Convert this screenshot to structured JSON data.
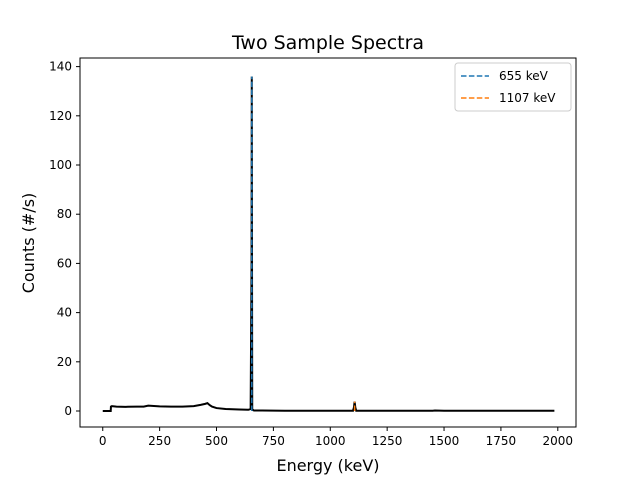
{
  "chart_data": {
    "type": "line",
    "title": "Two Sample Spectra",
    "xlabel": "Energy (keV)",
    "ylabel": "Counts (#/s)",
    "xlim": [
      -100,
      2080
    ],
    "ylim": [
      -6.5,
      143.5
    ],
    "xticks": [
      0,
      250,
      500,
      750,
      1000,
      1250,
      1500,
      1750,
      2000
    ],
    "yticks": [
      0,
      20,
      40,
      60,
      80,
      100,
      120,
      140
    ],
    "grid": false,
    "legend_position": "top-right",
    "series": [
      {
        "color": "#000000",
        "x": [
          0,
          35,
          36,
          40,
          60,
          100,
          150,
          180,
          200,
          250,
          300,
          350,
          400,
          430,
          450,
          460,
          470,
          480,
          500,
          540,
          600,
          640,
          650,
          654,
          655,
          656,
          657,
          660,
          662,
          665,
          700,
          800,
          900,
          1000,
          1100,
          1104,
          1107,
          1110,
          1114,
          1200,
          1300,
          1400,
          1450,
          1460,
          1500,
          1600,
          1700,
          1800,
          1900,
          1985
        ],
        "y": [
          0,
          0,
          1.8,
          2.0,
          1.8,
          1.7,
          1.8,
          1.8,
          2.2,
          1.9,
          1.8,
          1.8,
          2.0,
          2.5,
          2.9,
          3.2,
          2.4,
          1.8,
          1.2,
          0.8,
          0.6,
          0.5,
          0.8,
          60,
          136,
          60,
          0.7,
          0.5,
          0.3,
          0.2,
          0.2,
          0.1,
          0.1,
          0.1,
          0.1,
          1.5,
          3.8,
          1.5,
          0.1,
          0.1,
          0.1,
          0.1,
          0.1,
          0.2,
          0.1,
          0.1,
          0.1,
          0.1,
          0.1,
          0.1
        ]
      }
    ],
    "vlines": [
      {
        "name": "655 keV",
        "x": 655,
        "y0": 0,
        "y1": 136,
        "color": "#1f77b4",
        "style": "dashed"
      },
      {
        "name": "1107 keV",
        "x": 1107,
        "y0": 0,
        "y1": 3.8,
        "color": "#ff7f0e",
        "style": "dashed"
      }
    ]
  }
}
